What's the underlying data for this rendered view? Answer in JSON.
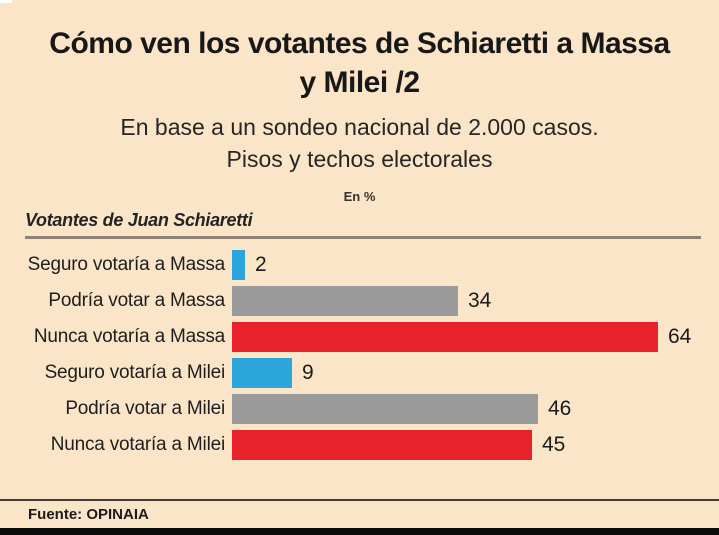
{
  "title": "Cómo ven los votantes de Schiaretti a Massa y Milei /2",
  "subtitle_line1": "En base a un sondeo nacional de 2.000 casos.",
  "subtitle_line2": "Pisos y techos electorales",
  "unit_label": "En %",
  "section_label": "Votantes de Juan Schiaretti",
  "source": "Fuente: OPINAIA",
  "colors": {
    "background": "#FBE5C8",
    "blue": "#2CA5DB",
    "gray": "#9B9B9B",
    "red": "#E8222B",
    "text": "#1B1B1B"
  },
  "chart_data": {
    "type": "bar",
    "orientation": "horizontal",
    "title": "Cómo ven los votantes de Schiaretti a Massa y Milei /2",
    "subtitle": "En base a un sondeo nacional de 2.000 casos. Pisos y techos electorales",
    "unit": "En %",
    "group_label": "Votantes de Juan Schiaretti",
    "categories": [
      "Seguro votaría a Massa",
      "Podría votar a Massa",
      "Nunca votaría a Massa",
      "Seguro votaría a Milei",
      "Podría votar a Milei",
      "Nunca votaría a Milei"
    ],
    "values": [
      2,
      34,
      64,
      9,
      46,
      45
    ],
    "bar_colors": [
      "blue",
      "gray",
      "red",
      "blue",
      "gray",
      "red"
    ],
    "value_labels_shown": true,
    "xlim": [
      0,
      70
    ],
    "grid": false,
    "legend": false,
    "source": "Fuente: OPINAIA"
  }
}
